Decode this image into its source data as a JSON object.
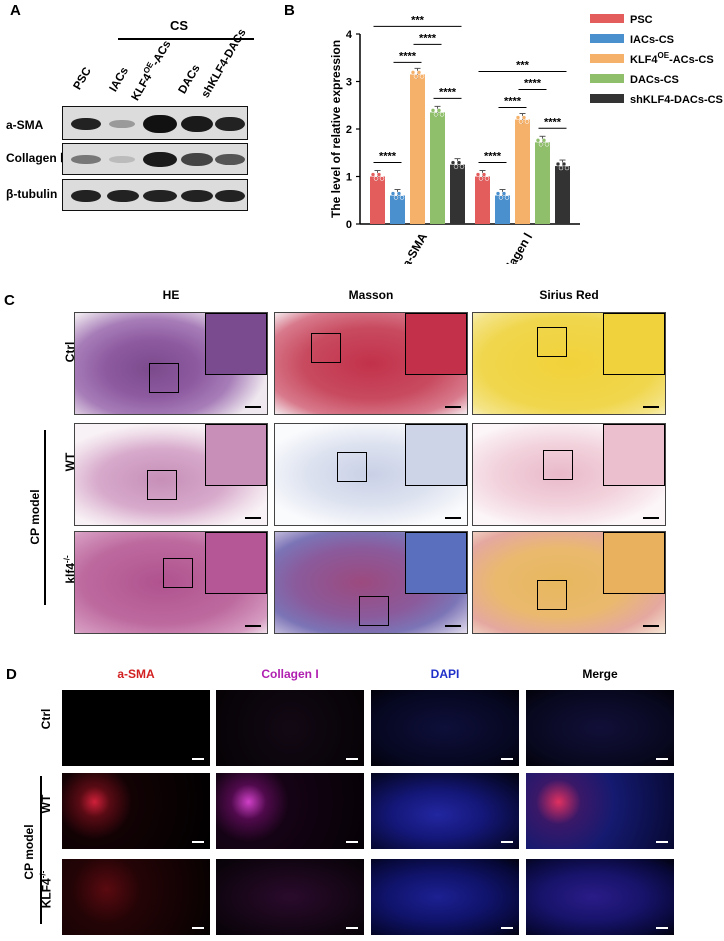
{
  "panels": {
    "a": "A",
    "b": "B",
    "c": "C",
    "d": "D"
  },
  "panelA": {
    "group": "CS",
    "lanes": [
      "PSC",
      "IACs",
      "KLF4",
      "OE",
      "-ACs",
      "DACs",
      "shKLF4-DACs"
    ],
    "rows": [
      "a-SMA",
      "Collagen Ⅰ",
      "β-tubulin"
    ]
  },
  "chart_data": {
    "type": "bar",
    "ylabel": "The level of relative expression",
    "categories": [
      "a-SMA",
      "Collagen Ⅰ"
    ],
    "ylim": [
      0,
      4
    ],
    "yticks": [
      "0",
      "1",
      "2",
      "3",
      "4"
    ],
    "series": [
      {
        "name": "PSC",
        "values": [
          1.0,
          1.0
        ],
        "color": "#e35d5d"
      },
      {
        "name": "IACs-CS",
        "values": [
          0.6,
          0.6
        ],
        "color": "#4a90cf"
      },
      {
        "name": "KLF4",
        "name_sup": "OE",
        "name_suffix": "-ACs-CS",
        "values": [
          3.15,
          2.2
        ],
        "color": "#f5b06a"
      },
      {
        "name": "DACs-CS",
        "values": [
          2.35,
          1.72
        ],
        "color": "#8fbf6a"
      },
      {
        "name": "shKLF4-DACs-CS",
        "values": [
          1.25,
          1.22
        ],
        "color": "#333333"
      }
    ],
    "annotations": [
      "****",
      "****",
      "****",
      "****",
      "***"
    ],
    "legend_position": "right"
  },
  "panelC": {
    "cols": [
      "HE",
      "Masson",
      "Sirius Red"
    ],
    "rows": [
      "Ctrl",
      "WT",
      "klf4",
      "-/-"
    ],
    "group": "CP model"
  },
  "panelD": {
    "cols": [
      "a-SMA",
      "Collagen I",
      "DAPI",
      "Merge"
    ],
    "rows": [
      "Ctrl",
      "WT",
      "KLF4",
      "-/-"
    ],
    "group": "CP model"
  }
}
